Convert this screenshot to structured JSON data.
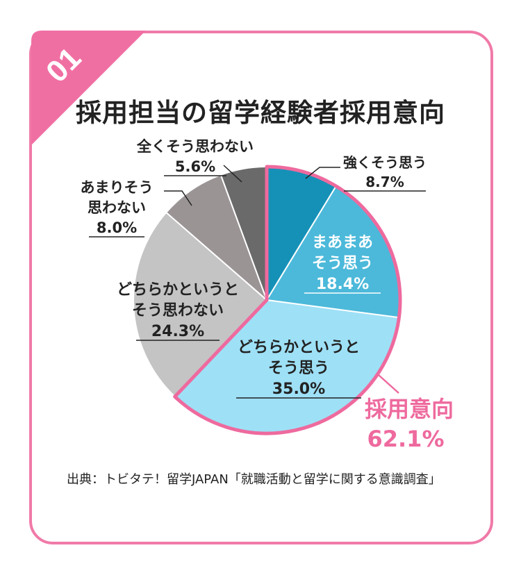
{
  "badge": {
    "number": "01",
    "color": "#f06fa3"
  },
  "page_title": "採用担当の留学経験者採用意向",
  "chart_data": {
    "type": "pie",
    "title": "採用担当の留学経験者採用意向",
    "slices": [
      {
        "label": "強くそう思う",
        "value": 8.7,
        "display": "8.7%",
        "color": "#1591b8"
      },
      {
        "label": "まあまあそう思う",
        "value": 18.4,
        "display": "18.4%",
        "color": "#4cb9da"
      },
      {
        "label": "どちらかというとそう思う",
        "value": 35.0,
        "display": "35.0%",
        "color": "#9ee0f6"
      },
      {
        "label": "どちらかというとそう思わない",
        "value": 24.3,
        "display": "24.3%",
        "color": "#c4c4c4"
      },
      {
        "label": "あまりそう思わない",
        "value": 8.0,
        "display": "8.0%",
        "color": "#9b9495"
      },
      {
        "label": "全くそう思わない",
        "value": 5.6,
        "display": "5.6%",
        "color": "#6a6a6a"
      }
    ],
    "highlight": {
      "label": "採用意向",
      "value": "62.1%",
      "color": "#ee6a9e"
    }
  },
  "label_lines": {
    "s0": [
      "強くそう思う"
    ],
    "s1": [
      "まあまあ",
      "そう思う"
    ],
    "s2": [
      "どちらかというと",
      "そう思う"
    ],
    "s3": [
      "どちらかというと",
      "そう思わない"
    ],
    "s4": [
      "あまりそう",
      "思わない"
    ],
    "s5": [
      "全くそう思わない"
    ]
  },
  "source": "出典：トビタテ！留学JAPAN「就職活動と留学に関する意識調査」"
}
